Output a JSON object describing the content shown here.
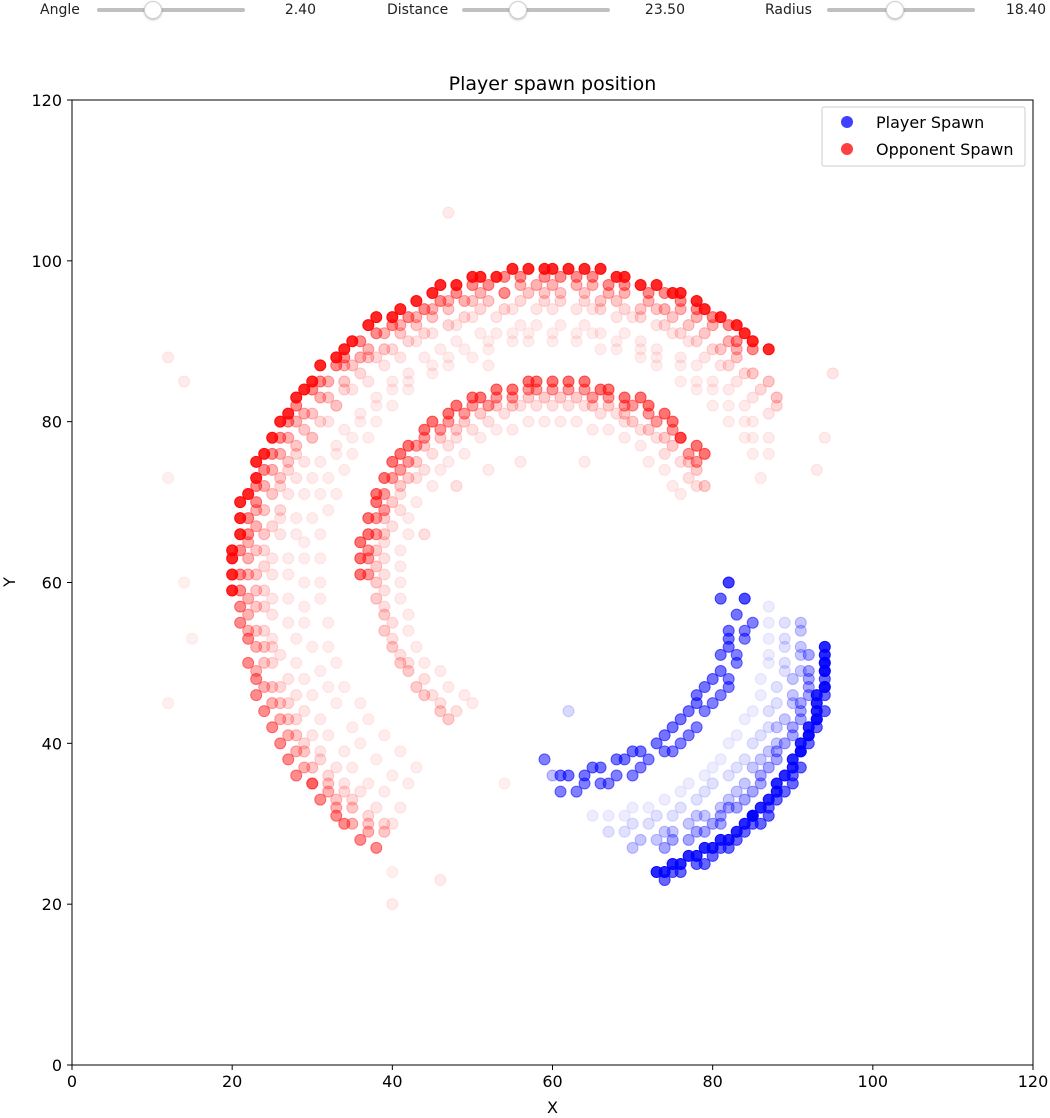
{
  "controls": {
    "sliders": [
      {
        "label": "Angle",
        "value": "2.40",
        "position": 0.38
      },
      {
        "label": "Distance",
        "value": "23.50",
        "position": 0.38
      },
      {
        "label": "Radius",
        "value": "18.40",
        "position": 0.46
      }
    ]
  },
  "chart_data": {
    "type": "scatter",
    "title": "Player spawn position",
    "xlabel": "X",
    "ylabel": "Y",
    "xlim": [
      0,
      120
    ],
    "ylim": [
      0,
      120
    ],
    "xticks": [
      0,
      20,
      40,
      60,
      80,
      100,
      120
    ],
    "yticks": [
      0,
      20,
      40,
      60,
      80,
      100,
      120
    ],
    "grid": false,
    "legend": {
      "placement": "top-right",
      "entries": [
        {
          "label": "Player Spawn",
          "color": "#0000ff"
        },
        {
          "label": "Opponent Spawn",
          "color": "#ff0000"
        }
      ]
    },
    "series": [
      {
        "name": "Player Spawn",
        "color": "#0000ff",
        "arcs": [
          {
            "cx": 65,
            "cy": 52,
            "r": 29,
            "from": -75,
            "to": 0,
            "count": 34,
            "alpha": 0.85
          },
          {
            "cx": 65,
            "cy": 51.5,
            "r": 29.5,
            "from": -72,
            "to": -2,
            "count": 30,
            "alpha": 0.6
          },
          {
            "cx": 65,
            "cy": 53,
            "r": 27.5,
            "from": -70,
            "to": -5,
            "count": 28,
            "alpha": 0.35
          },
          {
            "cx": 65,
            "cy": 53,
            "r": 26,
            "from": -80,
            "to": 5,
            "count": 26,
            "alpha": 0.22
          },
          {
            "cx": 65,
            "cy": 53,
            "r": 24,
            "from": -85,
            "to": 5,
            "count": 24,
            "alpha": 0.12
          },
          {
            "cx": 65,
            "cy": 53,
            "r": 22,
            "from": -90,
            "to": 10,
            "count": 22,
            "alpha": 0.07
          },
          {
            "cx": 59,
            "cy": 60,
            "r": 24,
            "from": -85,
            "to": -10,
            "count": 24,
            "alpha": 0.55
          },
          {
            "cx": 59,
            "cy": 60,
            "r": 26,
            "from": -85,
            "to": -10,
            "count": 24,
            "alpha": 0.5
          }
        ],
        "points": [
          [
            82,
            60,
            0.75
          ],
          [
            84,
            58,
            0.7
          ],
          [
            81,
            58,
            0.6
          ],
          [
            59,
            38,
            0.5
          ],
          [
            60,
            36,
            0.25
          ],
          [
            62,
            44,
            0.15
          ]
        ]
      },
      {
        "name": "Opponent Spawn",
        "color": "#ff0000",
        "arcs": [
          {
            "cx": 60,
            "cy": 59,
            "r": 40,
            "from": 48,
            "to": 180,
            "count": 52,
            "alpha": 0.85
          },
          {
            "cx": 60,
            "cy": 59,
            "r": 39,
            "from": 50,
            "to": 235,
            "count": 58,
            "alpha": 0.45
          },
          {
            "cx": 60,
            "cy": 59,
            "r": 38,
            "from": 52,
            "to": 232,
            "count": 54,
            "alpha": 0.3
          },
          {
            "cx": 60,
            "cy": 59,
            "r": 37,
            "from": 40,
            "to": 235,
            "count": 54,
            "alpha": 0.22
          },
          {
            "cx": 60,
            "cy": 59,
            "r": 36,
            "from": 40,
            "to": 235,
            "count": 50,
            "alpha": 0.15
          },
          {
            "cx": 60,
            "cy": 59,
            "r": 35,
            "from": 40,
            "to": 235,
            "count": 48,
            "alpha": 0.1
          },
          {
            "cx": 60,
            "cy": 59,
            "r": 33,
            "from": 35,
            "to": 235,
            "count": 46,
            "alpha": 0.08
          },
          {
            "cx": 60,
            "cy": 60,
            "r": 31,
            "from": 30,
            "to": 235,
            "count": 42,
            "alpha": 0.07
          },
          {
            "cx": 60,
            "cy": 61,
            "r": 29,
            "from": 25,
            "to": 235,
            "count": 40,
            "alpha": 0.07
          },
          {
            "cx": 60,
            "cy": 61,
            "r": 24,
            "from": 38,
            "to": 180,
            "count": 34,
            "alpha": 0.55
          },
          {
            "cx": 60,
            "cy": 61,
            "r": 23,
            "from": 38,
            "to": 180,
            "count": 34,
            "alpha": 0.4
          },
          {
            "cx": 60,
            "cy": 61,
            "r": 22,
            "from": 30,
            "to": 235,
            "count": 40,
            "alpha": 0.2
          },
          {
            "cx": 60,
            "cy": 61,
            "r": 21,
            "from": 30,
            "to": 235,
            "count": 38,
            "alpha": 0.12
          },
          {
            "cx": 60,
            "cy": 61,
            "r": 19,
            "from": 30,
            "to": 240,
            "count": 34,
            "alpha": 0.08
          }
        ],
        "points": [
          [
            12,
            88,
            0.08
          ],
          [
            14,
            85,
            0.08
          ],
          [
            12,
            73,
            0.06
          ],
          [
            12,
            45,
            0.06
          ],
          [
            15,
            53,
            0.06
          ],
          [
            14,
            60,
            0.06
          ],
          [
            95,
            86,
            0.1
          ],
          [
            94,
            78,
            0.08
          ],
          [
            93,
            74,
            0.08
          ],
          [
            47,
            106,
            0.08
          ],
          [
            40,
            20,
            0.08
          ],
          [
            46,
            23,
            0.08
          ],
          [
            40,
            24,
            0.06
          ],
          [
            54,
            35,
            0.06
          ],
          [
            52,
            74,
            0.08
          ],
          [
            64,
            75,
            0.08
          ],
          [
            56,
            75,
            0.08
          ],
          [
            52,
            87,
            0.08
          ],
          [
            48,
            72,
            0.12
          ],
          [
            44,
            66,
            0.12
          ]
        ]
      }
    ]
  }
}
